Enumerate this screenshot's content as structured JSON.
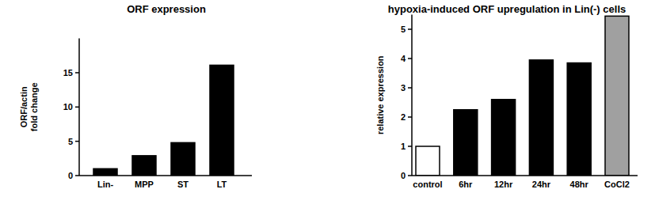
{
  "chart_data": [
    {
      "type": "bar",
      "title": "ORF expression",
      "y_label": "ORF/actin\nfold change",
      "categories": [
        "Lin-",
        "MPP",
        "ST",
        "LT"
      ],
      "values": [
        1.0,
        2.9,
        4.8,
        16.1
      ],
      "color": "#000000",
      "ylim": [
        0,
        20
      ],
      "yticks": [
        0,
        5,
        10,
        15
      ]
    },
    {
      "type": "bar",
      "title": "hypoxia-induced ORF upregulation in Lin(-) cells",
      "y_label": "relative expression",
      "categories": [
        "control",
        "6hr",
        "12hr",
        "24hr",
        "48hr",
        "CoCl2"
      ],
      "values": [
        1.0,
        2.25,
        2.6,
        3.95,
        3.85,
        5.45
      ],
      "colors": [
        "#ffffff",
        "#000000",
        "#000000",
        "#000000",
        "#000000",
        "#a0a0a0"
      ],
      "ylim": [
        0,
        5.5
      ],
      "yticks": [
        0,
        1,
        2,
        3,
        4,
        5
      ]
    }
  ]
}
